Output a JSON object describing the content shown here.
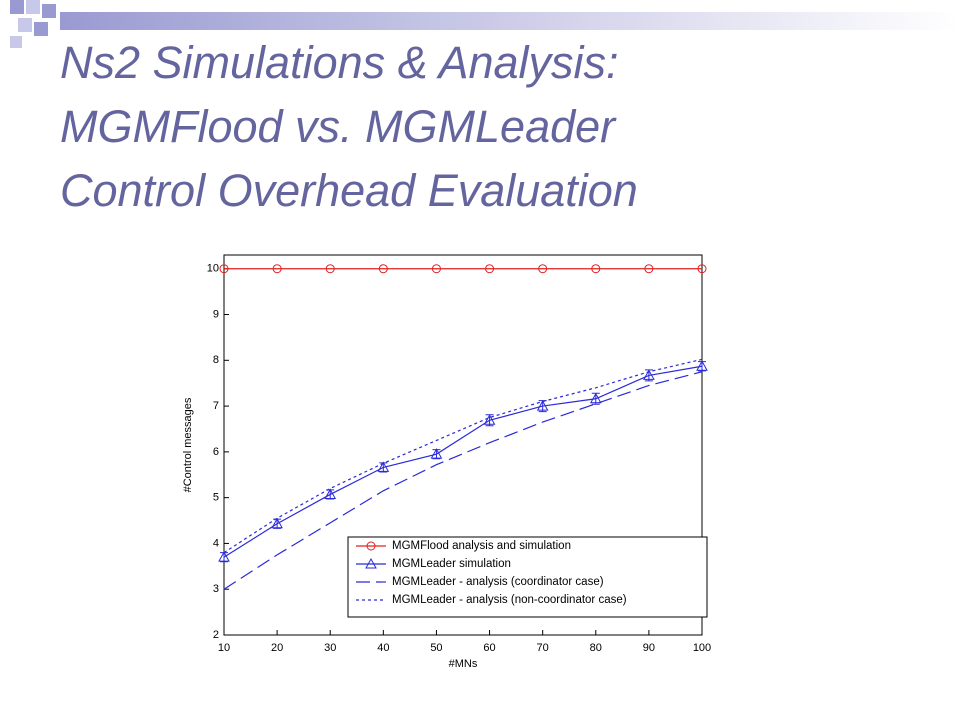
{
  "slide": {
    "title_lines": [
      "Ns2 Simulations & Analysis:",
      "MGMFlood vs. MGMLeader",
      "Control Overhead Evaluation"
    ]
  },
  "chart_data": {
    "type": "line",
    "x_label": "#MNs",
    "y_label": "#Control messages",
    "x": [
      10,
      20,
      30,
      40,
      50,
      60,
      70,
      80,
      90,
      100
    ],
    "xlim": [
      10,
      100
    ],
    "xticks": [
      10,
      20,
      30,
      40,
      50,
      60,
      70,
      80,
      90,
      100
    ],
    "ylim": [
      2,
      10.3
    ],
    "yticks": [
      2,
      3,
      4,
      5,
      6,
      7,
      8,
      9,
      10
    ],
    "legend": "lower-right",
    "series": [
      {
        "name": "MGMFlood analysis and simulation",
        "color": "#e02020",
        "marker": "circle",
        "dash": "solid",
        "values": [
          10,
          10,
          10,
          10,
          10,
          10,
          10,
          10,
          10,
          10
        ]
      },
      {
        "name": "MGMLeader simulation",
        "color": "#2a2ad8",
        "marker": "triangle",
        "dash": "solid",
        "values": [
          3.7,
          4.43,
          5.07,
          5.66,
          5.95,
          6.69,
          7.0,
          7.16,
          7.67,
          7.87
        ],
        "errors": [
          0.1,
          0.1,
          0.1,
          0.1,
          0.1,
          0.12,
          0.12,
          0.12,
          0.12,
          0.1
        ]
      },
      {
        "name": "MGMLeader - analysis (coordinator case)",
        "color": "#2a2ad8",
        "marker": "none",
        "dash": "long-dash",
        "values": [
          3.0,
          3.75,
          4.45,
          5.15,
          5.72,
          6.2,
          6.65,
          7.05,
          7.45,
          7.75
        ]
      },
      {
        "name": "MGMLeader - analysis (non-coordinator case)",
        "color": "#2a2ad8",
        "marker": "none",
        "dash": "dot",
        "values": [
          3.8,
          4.55,
          5.2,
          5.75,
          6.25,
          6.75,
          7.1,
          7.4,
          7.75,
          8.02
        ]
      }
    ]
  }
}
